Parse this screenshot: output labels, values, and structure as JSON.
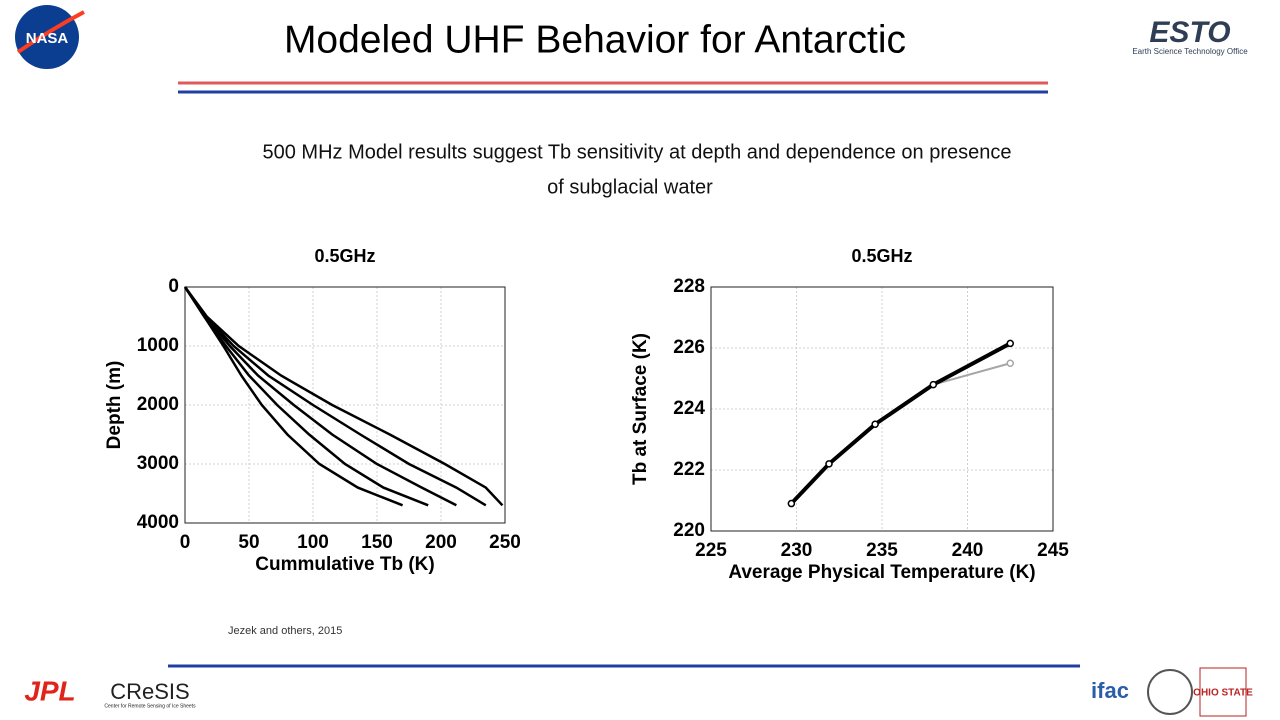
{
  "slide": {
    "title": "Modeled UHF Behavior for Antarctic",
    "subtitle": [
      "500 MHz Model results suggest Tb sensitivity at depth and dependence on presence",
      "of subglacial water"
    ],
    "citation": "Jezek and others, 2015",
    "logos": {
      "nasa": "NASA",
      "esto": "ESTO",
      "esto_sub": "Earth Science Technology Office",
      "jpl": "JPL",
      "cresis": "CReSIS",
      "cresis_sub": "Center for Remote Sensing of Ice Sheets",
      "ifac": "ifac",
      "osu": "OHIO STATE"
    }
  },
  "chart_data": [
    {
      "type": "line",
      "title": "0.5GHz",
      "x_label": "Cummulative Tb (K)",
      "y_label": "Depth (m)",
      "xlim": [
        0,
        250
      ],
      "xticks": [
        0,
        50,
        100,
        150,
        200,
        250
      ],
      "ylim": [
        0,
        4000
      ],
      "yticks": [
        0,
        1000,
        2000,
        3000,
        4000
      ],
      "y_inverted": true,
      "grid": true,
      "series": [
        {
          "color": "#000000",
          "x": [
            0,
            15,
            30,
            44,
            60,
            80,
            105,
            135,
            170
          ],
          "values": [
            0,
            500,
            1000,
            1500,
            2000,
            2500,
            3000,
            3400,
            3700
          ]
        },
        {
          "color": "#000000",
          "x": [
            0,
            15,
            32,
            50,
            72,
            97,
            125,
            155,
            190
          ],
          "values": [
            0,
            500,
            1000,
            1500,
            2000,
            2500,
            3000,
            3400,
            3700
          ]
        },
        {
          "color": "#000000",
          "x": [
            0,
            16,
            35,
            57,
            85,
            115,
            150,
            185,
            212
          ],
          "values": [
            0,
            500,
            1000,
            1500,
            2000,
            2500,
            3000,
            3400,
            3700
          ]
        },
        {
          "color": "#000000",
          "x": [
            0,
            16,
            38,
            65,
            100,
            137,
            175,
            212,
            235
          ],
          "values": [
            0,
            500,
            1000,
            1500,
            2000,
            2500,
            3000,
            3400,
            3700
          ]
        },
        {
          "color": "#000000",
          "x": [
            0,
            17,
            42,
            75,
            115,
            160,
            203,
            235,
            248
          ],
          "values": [
            0,
            500,
            1000,
            1500,
            2000,
            2500,
            3000,
            3400,
            3700
          ]
        }
      ]
    },
    {
      "type": "line",
      "title": "0.5GHz",
      "x_label": "Average Physical Temperature (K)",
      "y_label": "Tb at Surface (K)",
      "xlim": [
        225,
        245
      ],
      "xticks": [
        225,
        230,
        235,
        240,
        245
      ],
      "ylim": [
        220,
        228
      ],
      "yticks": [
        220,
        222,
        224,
        226,
        228
      ],
      "grid": true,
      "marker": "o",
      "series": [
        {
          "color": "#a6a6a6",
          "x": [
            229.7,
            231.9,
            234.6,
            238.0,
            242.5
          ],
          "values": [
            220.9,
            222.2,
            223.5,
            224.8,
            225.5
          ]
        },
        {
          "color": "#000000",
          "x": [
            229.7,
            231.9,
            234.6,
            238.0,
            242.5
          ],
          "values": [
            220.9,
            222.2,
            223.5,
            224.8,
            226.15
          ]
        }
      ]
    }
  ]
}
